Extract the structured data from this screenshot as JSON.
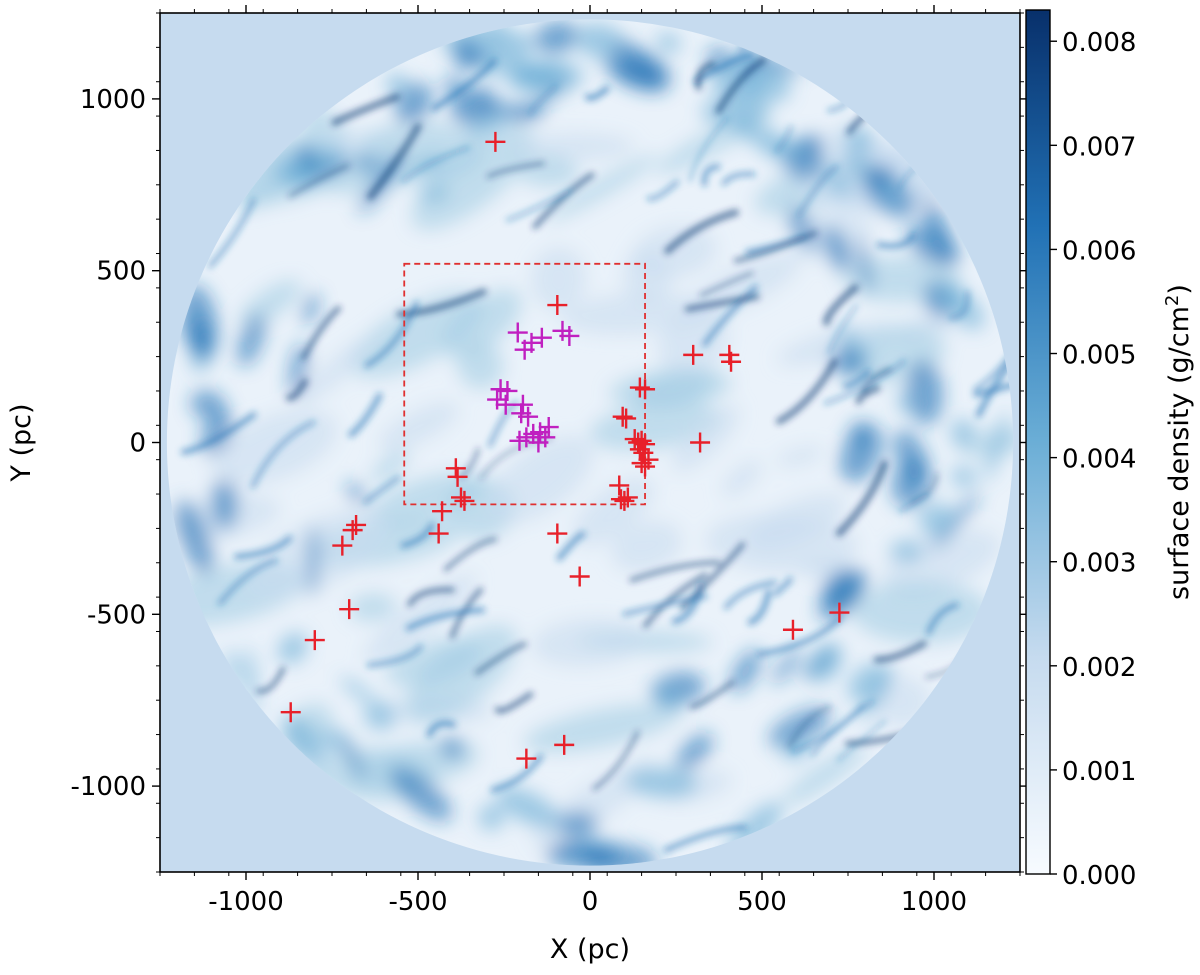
{
  "chart_data": {
    "type": "scatter",
    "background": "heatmap",
    "xlabel": "X (pc)",
    "ylabel": "Y (pc)",
    "xlim": [
      -1250,
      1250
    ],
    "ylim": [
      -1250,
      1250
    ],
    "xticks": [
      -1000,
      -500,
      0,
      500,
      1000
    ],
    "yticks": [
      -1000,
      -500,
      0,
      500,
      1000
    ],
    "xtick_labels": [
      "-1000",
      "-500",
      "0",
      "500",
      "1000"
    ],
    "ytick_labels": [
      "-1000",
      "-500",
      "0",
      "500",
      "1000"
    ],
    "disk_radius": 1230,
    "highlight_box": {
      "x": [
        -540,
        160
      ],
      "y": [
        -180,
        520
      ],
      "color": "#e03030"
    },
    "colorbar": {
      "label": "surface density (g/cm",
      "label_superscript": "2",
      "label_suffix": ")",
      "min": 0.0,
      "max": 0.0083,
      "ticks": [
        0.0,
        0.001,
        0.002,
        0.003,
        0.004,
        0.005,
        0.006,
        0.007,
        0.008
      ],
      "tick_labels": [
        "0.000",
        "0.001",
        "0.002",
        "0.003",
        "0.004",
        "0.005",
        "0.006",
        "0.007",
        "0.008"
      ],
      "colors": [
        "#f7fbff",
        "#c6dbef",
        "#6baed6",
        "#2171b5",
        "#08306b"
      ]
    },
    "series": [
      {
        "color": "#e8202a",
        "marker": "plus",
        "points": [
          [
            -275,
            875
          ],
          [
            -95,
            400
          ],
          [
            300,
            255
          ],
          [
            405,
            255
          ],
          [
            410,
            235
          ],
          [
            145,
            160
          ],
          [
            160,
            155
          ],
          [
            95,
            75
          ],
          [
            105,
            70
          ],
          [
            130,
            10
          ],
          [
            140,
            0
          ],
          [
            150,
            5
          ],
          [
            160,
            -5
          ],
          [
            145,
            -20
          ],
          [
            155,
            -30
          ],
          [
            170,
            -50
          ],
          [
            150,
            -60
          ],
          [
            160,
            -70
          ],
          [
            320,
            0
          ],
          [
            -390,
            -75
          ],
          [
            -385,
            -100
          ],
          [
            -375,
            -160
          ],
          [
            -365,
            -170
          ],
          [
            -430,
            -200
          ],
          [
            -440,
            -265
          ],
          [
            -95,
            -265
          ],
          [
            -30,
            -390
          ],
          [
            85,
            -125
          ],
          [
            90,
            -165
          ],
          [
            100,
            -170
          ],
          [
            110,
            -160
          ],
          [
            -680,
            -240
          ],
          [
            -690,
            -255
          ],
          [
            -720,
            -300
          ],
          [
            -700,
            -485
          ],
          [
            -800,
            -575
          ],
          [
            -870,
            -785
          ],
          [
            590,
            -545
          ],
          [
            725,
            -495
          ],
          [
            -75,
            -880
          ],
          [
            -185,
            -920
          ]
        ]
      },
      {
        "color": "#c020c0",
        "marker": "plus",
        "points": [
          [
            -210,
            320
          ],
          [
            -190,
            270
          ],
          [
            -170,
            290
          ],
          [
            -140,
            305
          ],
          [
            -80,
            325
          ],
          [
            -60,
            310
          ],
          [
            -260,
            155
          ],
          [
            -240,
            150
          ],
          [
            -270,
            125
          ],
          [
            -245,
            110
          ],
          [
            -195,
            110
          ],
          [
            -200,
            85
          ],
          [
            -180,
            75
          ],
          [
            -205,
            5
          ],
          [
            -185,
            15
          ],
          [
            -165,
            25
          ],
          [
            -145,
            30
          ],
          [
            -130,
            15
          ],
          [
            -120,
            45
          ],
          [
            -150,
            0
          ]
        ]
      }
    ]
  }
}
